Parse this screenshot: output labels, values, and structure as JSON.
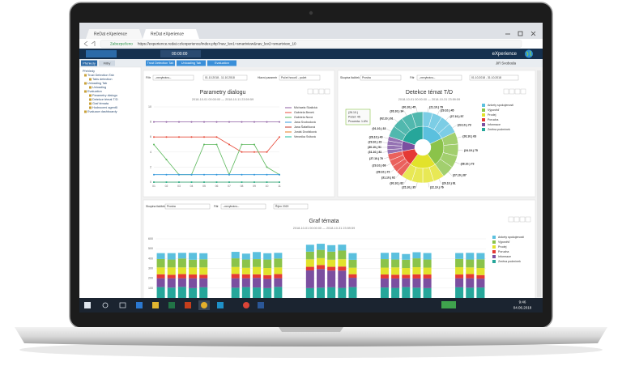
{
  "browser": {
    "tabs": [
      "ReDat eXperience",
      "ReDat eXperience"
    ],
    "secure": "Zabezpečeno",
    "url": "https://experience.redat.cz/experience/index.php?nav_lev1=smartview&nav_lev2=smartview_10"
  },
  "app": {
    "brand": "eXperience",
    "user": "Jiří Svoboda",
    "time": "00:00:00",
    "side_tabs": [
      "Přehledy",
      "Filtry"
    ],
    "tabs": [
      "Trust Detection Tab",
      "Unloading Tab",
      "Evaluation"
    ]
  },
  "sidebar": {
    "items": [
      "Přehledy",
      "Trust Detection Tab",
      "Tabs detection",
      "Unloading Tab",
      "Unloading",
      "Evaluation",
      "Parametry dialogu",
      "Detekce témat T/D",
      "Graf témata",
      "Hodnocení agentů",
      "Evaluace dashboardy"
    ]
  },
  "line_chart": {
    "title": "Parametry dialogu",
    "subtitle": "2018-10-01 00:00:00 — 2018-10-11 23:59:59",
    "filter_label": "Filtr",
    "filter_value": "--nevybráno--",
    "date_range": "01.10.2018 - 11.10.2018",
    "param_label": "Hlavní parametr",
    "param_value": "Počet hovorů - počet",
    "categories": [
      "01",
      "02",
      "03",
      "04",
      "05",
      "06",
      "07",
      "08",
      "09",
      "10",
      "11"
    ],
    "ylim": [
      0,
      10
    ],
    "yticks": [
      0,
      2,
      4,
      6,
      8,
      10
    ],
    "series": [
      {
        "name": "Michaela Skalická",
        "color": "#8e5ea2",
        "values": [
          8,
          8,
          8,
          8,
          8,
          8,
          8,
          8,
          8,
          8,
          8
        ]
      },
      {
        "name": "Gabriela Beneš",
        "color": "#e74c3c",
        "values": [
          6,
          6,
          6,
          6,
          6,
          6,
          5,
          4,
          4,
          4,
          6
        ]
      },
      {
        "name": "Gabriela Nová",
        "color": "#5cb85c",
        "values": [
          5,
          3,
          1,
          1,
          5,
          5,
          1,
          5,
          5,
          2,
          1
        ]
      },
      {
        "name": "Jana Svobodová",
        "color": "#3498db",
        "values": [
          1,
          1,
          1,
          1,
          1,
          1,
          1,
          1,
          1,
          1,
          1
        ]
      },
      {
        "name": "Jana Šafaříková",
        "color": "#c0392b",
        "values": [
          0,
          0,
          0,
          0,
          0,
          0,
          0,
          0,
          0,
          0,
          0
        ]
      },
      {
        "name": "Jonáš Dvořáková",
        "color": "#e67e22",
        "values": [
          0,
          0,
          0,
          0,
          0,
          0,
          0,
          0,
          0,
          0,
          0
        ]
      },
      {
        "name": "Veronika Svitová",
        "color": "#1abc9c",
        "values": [
          0,
          0,
          0,
          0,
          0,
          0,
          0,
          0,
          0,
          0,
          0
        ]
      }
    ]
  },
  "sunburst": {
    "title": "Detekce témat T/D",
    "subtitle": "2018-10-01 00:00:00 — 2018-10-31 23:59:59",
    "filter_label": "Skupina tlačítek",
    "filter_value": "Prosba",
    "filter2_label": "Filtr",
    "filter2_value": "--nevybráno--",
    "date_range": "01.10.2018 - 31.10.2018",
    "tooltip": [
      "(26.10.)",
      "Počet: 45",
      "Procenta: 1.6%"
    ],
    "categories": [
      {
        "name": "Ankety spokojenosti",
        "color": "#5bc0de",
        "value": 18,
        "children": [
          "(21.10.) 79",
          "(29.10.) 45",
          "(27.10.) 57",
          "(23.10.) 73"
        ]
      },
      {
        "name": "Výpověď",
        "color": "#8bc34a",
        "value": 22,
        "children": [
          "(26.10.) 63",
          "(24.10.) 75",
          "(28.10.) 73",
          "(27.10.) 87"
        ]
      },
      {
        "name": "Prodej",
        "color": "#e2e22b",
        "value": 20,
        "children": [
          "(20.10.) 61",
          "(22.10.) 76",
          "(25.10.) 35",
          "(30.10.) 82"
        ]
      },
      {
        "name": "Porucha",
        "color": "#e53935",
        "value": 12,
        "children": [
          "(31.10.) 62",
          "(28.10.) 72",
          "(29.10.) 68",
          "(27.10.) 70"
        ]
      },
      {
        "name": "Informace",
        "color": "#7b4fa0",
        "value": 8,
        "children": [
          "(31.10.) 81",
          "(30.10.) 51",
          "(29.10.) 23",
          "(26.10.) 40"
        ]
      },
      {
        "name": "Změna podmínek",
        "color": "#26a69a",
        "value": 20,
        "children": [
          "(01.10.) 33",
          "(02.10.) 61",
          "(26.10.) 34",
          "(30.10.) 45"
        ]
      }
    ]
  },
  "bar_chart": {
    "title": "Graf témata",
    "subtitle": "2018-10-01 00:00:00 — 2018-10-31 23:59:59",
    "filter_label": "Skupina tlačítek",
    "filter_value": "Prosba",
    "filter2_label": "Filtr",
    "filter2_value": "--nevybráno--",
    "month": "Říjen 2020",
    "ylim": [
      0,
      600
    ],
    "yticks": [
      100,
      200,
      300,
      400,
      500,
      600
    ],
    "series": [
      {
        "name": "Ankety spokojenosti",
        "color": "#5bc0de",
        "values": [
          60,
          65,
          58,
          70,
          62,
          null,
          null,
          66,
          60,
          72,
          64,
          58,
          null,
          null,
          70,
          62,
          66,
          60,
          68,
          null,
          null,
          64,
          70,
          58,
          62,
          66,
          null,
          null,
          60,
          68,
          64
        ]
      },
      {
        "name": "Výpověď",
        "color": "#8bc34a",
        "values": [
          85,
          80,
          90,
          78,
          82,
          null,
          null,
          88,
          84,
          80,
          86,
          90,
          null,
          null,
          78,
          84,
          82,
          88,
          80,
          null,
          null,
          86,
          80,
          84,
          90,
          82,
          null,
          null,
          84,
          80,
          88
        ]
      },
      {
        "name": "Prodej",
        "color": "#e2e22b",
        "values": [
          70,
          75,
          68,
          72,
          74,
          null,
          null,
          70,
          66,
          74,
          72,
          68,
          null,
          null,
          76,
          70,
          72,
          74,
          66,
          null,
          null,
          70,
          74,
          68,
          72,
          70,
          null,
          null,
          74,
          68,
          72
        ]
      },
      {
        "name": "Porucha",
        "color": "#e53935",
        "values": [
          40,
          35,
          42,
          38,
          36,
          null,
          null,
          44,
          40,
          36,
          38,
          42,
          null,
          null,
          36,
          40,
          38,
          42,
          36,
          null,
          null,
          40,
          38,
          36,
          42,
          40,
          null,
          null,
          38,
          42,
          36
        ]
      },
      {
        "name": "Informace",
        "color": "#7b4fa0",
        "values": [
          90,
          95,
          88,
          100,
          92,
          null,
          null,
          96,
          90,
          98,
          94,
          88,
          null,
          null,
          180,
          190,
          170,
          175,
          95,
          null,
          null,
          92,
          96,
          90,
          94,
          98,
          null,
          null,
          92,
          96,
          90
        ]
      },
      {
        "name": "Změna podmínek",
        "color": "#26a69a",
        "values": [
          110,
          105,
          112,
          100,
          108,
          null,
          null,
          104,
          110,
          106,
          100,
          112,
          null,
          null,
          100,
          104,
          108,
          102,
          110,
          null,
          null,
          106,
          102,
          110,
          104,
          100,
          null,
          null,
          108,
          104,
          106
        ]
      }
    ]
  },
  "taskbar": {
    "time": "9:46",
    "date": "04.06.2018"
  }
}
